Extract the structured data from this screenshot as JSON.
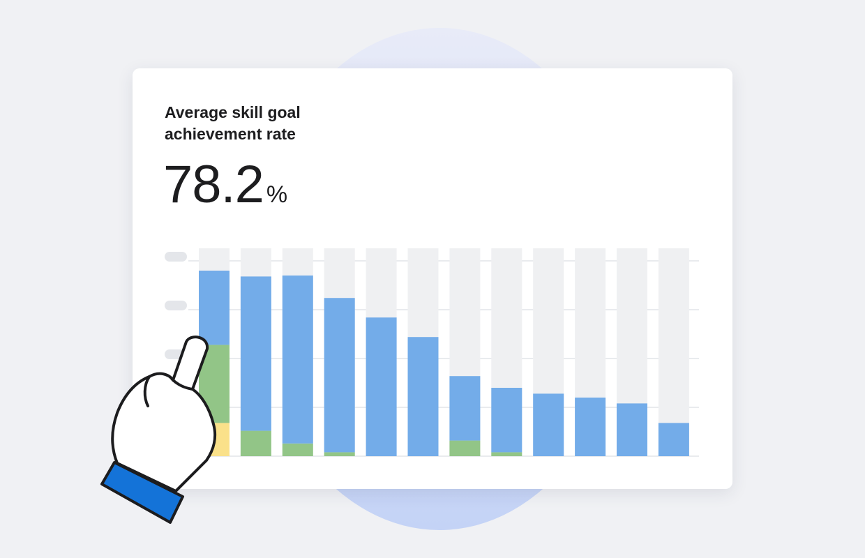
{
  "card": {
    "title": "Average skill goal achievement rate",
    "metric_value": "78.2",
    "metric_unit": "%"
  },
  "colors": {
    "background": "#f0f1f4",
    "track": "#eff0f2",
    "blue": "#73ace9",
    "green": "#92c587",
    "yellow": "#fae18a",
    "hand_cuff": "#1473d8"
  },
  "icons": {
    "pointer": "pointing-hand-icon"
  },
  "chart_data": {
    "type": "bar",
    "stacked": true,
    "categories": [
      "",
      "",
      "",
      "",
      "",
      "",
      "",
      "",
      "",
      "",
      "",
      ""
    ],
    "ylim": [
      0,
      100
    ],
    "grid": true,
    "axis_labels_visible": false,
    "series": [
      {
        "color": "#fae18a",
        "values": [
          17,
          0,
          0,
          0,
          0,
          0,
          0,
          0,
          0,
          0,
          0,
          0
        ]
      },
      {
        "color": "#92c587",
        "values": [
          40,
          13,
          6.5,
          2,
          0,
          0,
          8,
          2,
          0,
          0,
          0,
          0
        ]
      },
      {
        "color": "#73ace9",
        "values": [
          38,
          79,
          86,
          79,
          71,
          61,
          33,
          33,
          32,
          30,
          27,
          17
        ]
      }
    ]
  }
}
